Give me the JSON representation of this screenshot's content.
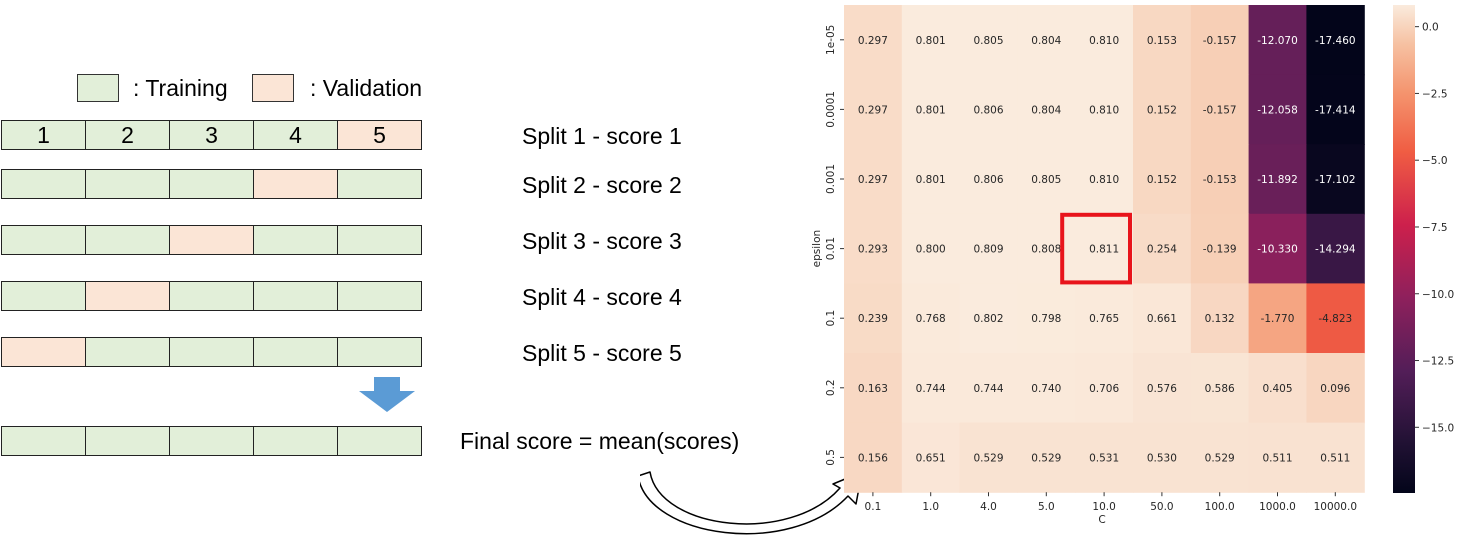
{
  "legend": {
    "training_label": ": Training",
    "validation_label": ": Validation",
    "training_color": "#e2efd9",
    "validation_color": "#fbe5d6"
  },
  "fold_numbers": [
    "1",
    "2",
    "3",
    "4",
    "5"
  ],
  "splits": [
    {
      "label": "Split 1 - score 1",
      "validation_fold": 5
    },
    {
      "label": "Split 2 - score 2",
      "validation_fold": 4
    },
    {
      "label": "Split 3 - score 3",
      "validation_fold": 3
    },
    {
      "label": "Split 4 - score 4",
      "validation_fold": 2
    },
    {
      "label": "Split 5 - score 5",
      "validation_fold": 1
    }
  ],
  "final": {
    "label": "Final score = mean(scores)"
  },
  "arrow_color": "#5b9bd5",
  "chart_data": {
    "type": "heatmap",
    "xlabel": "C",
    "ylabel": "epsilon",
    "x": [
      "0.1",
      "1.0",
      "4.0",
      "5.0",
      "10.0",
      "50.0",
      "100.0",
      "1000.0",
      "10000.0"
    ],
    "y": [
      "1e-05",
      "0.0001",
      "0.001",
      "0.01",
      "0.1",
      "0.2",
      "0.5"
    ],
    "values": [
      [
        "0.297",
        "0.801",
        "0.805",
        "0.804",
        "0.810",
        "0.153",
        "-0.157",
        "-12.070",
        "-17.460"
      ],
      [
        "0.297",
        "0.801",
        "0.806",
        "0.804",
        "0.810",
        "0.152",
        "-0.157",
        "-12.058",
        "-17.414"
      ],
      [
        "0.297",
        "0.801",
        "0.806",
        "0.805",
        "0.810",
        "0.152",
        "-0.153",
        "-11.892",
        "-17.102"
      ],
      [
        "0.293",
        "0.800",
        "0.809",
        "0.808",
        "0.811",
        "0.254",
        "-0.139",
        "-10.330",
        "-14.294"
      ],
      [
        "0.239",
        "0.768",
        "0.802",
        "0.798",
        "0.765",
        "0.661",
        "0.132",
        "-1.770",
        "-4.823"
      ],
      [
        "0.163",
        "0.744",
        "0.744",
        "0.740",
        "0.706",
        "0.576",
        "0.586",
        "0.405",
        "0.096"
      ],
      [
        "0.156",
        "0.651",
        "0.529",
        "0.529",
        "0.531",
        "0.530",
        "0.529",
        "0.511",
        "0.511"
      ]
    ],
    "colorbar_ticks": [
      "0.0",
      "−2.5",
      "−5.0",
      "−7.5",
      "−10.0",
      "−12.5",
      "−15.0"
    ],
    "colorbar_tick_values": [
      0,
      -2.5,
      -5,
      -7.5,
      -10,
      -12.5,
      -15
    ],
    "color_range": [
      -17.46,
      0.811
    ],
    "highlight": {
      "row": 3,
      "col": 4,
      "color": "#e8141b"
    }
  }
}
